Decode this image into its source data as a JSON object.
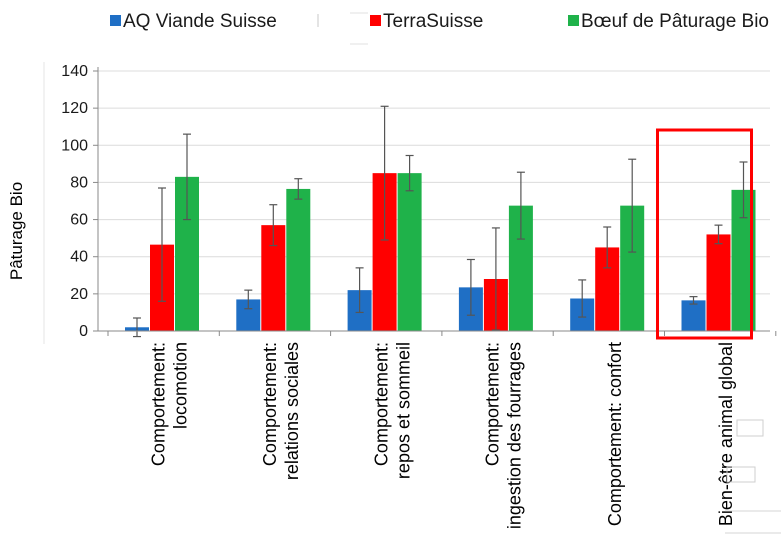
{
  "chart_data": {
    "type": "bar",
    "title": "",
    "xlabel": "",
    "ylabel": "Pâturage Bio",
    "ylim": [
      0,
      140
    ],
    "yticks": [
      "0",
      "20",
      "40",
      "60",
      "80",
      "100",
      "120",
      "140"
    ],
    "grid": true,
    "legend_position": "top",
    "categories": [
      [
        "Comportement:",
        "locomotion"
      ],
      [
        "Comportement:",
        "relations sociales"
      ],
      [
        "Comportement:",
        "repos et sommeil"
      ],
      [
        "Comportement:",
        "ingestion des fourrages"
      ],
      [
        "Comportement: confort"
      ],
      [
        "Bien-être animal global"
      ]
    ],
    "series": [
      {
        "name": "AQ Viande Suisse",
        "color": "#1f6fc5",
        "values": [
          2,
          17,
          22,
          23.5,
          17.5,
          16.5
        ],
        "errors": [
          5,
          5,
          12,
          15,
          10,
          2
        ]
      },
      {
        "name": "TerraSuisse",
        "color": "#ff0000",
        "values": [
          46.5,
          57,
          85,
          28,
          45,
          52
        ],
        "errors": [
          30.5,
          11,
          36,
          27.5,
          11,
          5
        ]
      },
      {
        "name": "Bœuf de Pâturage Bio",
        "color": "#1fb24a",
        "values": [
          83,
          76.5,
          85,
          67.5,
          67.5,
          76
        ],
        "errors": [
          23,
          5.5,
          9.5,
          18,
          25,
          15
        ]
      }
    ],
    "highlight_category": 5,
    "highlight_color": "#ff0000"
  }
}
